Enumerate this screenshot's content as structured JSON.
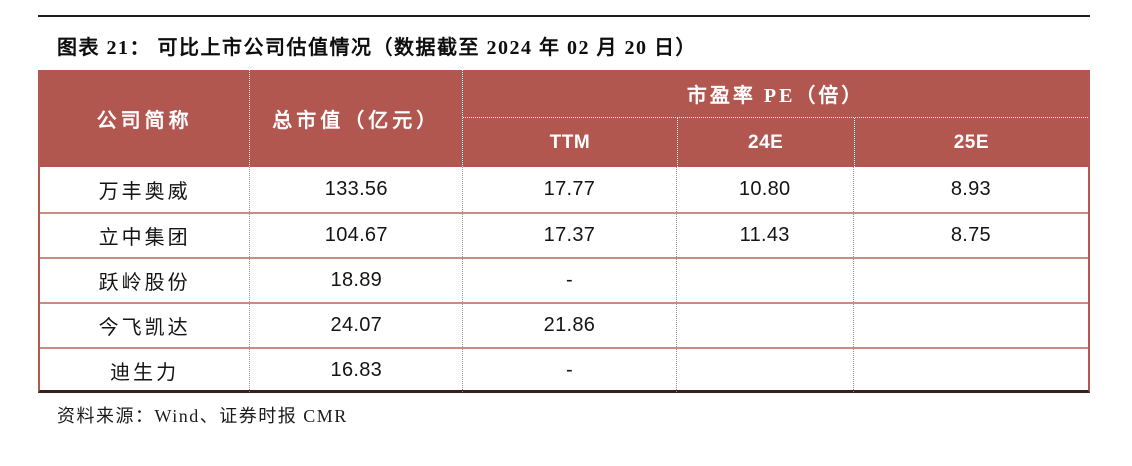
{
  "title": "图表 21： 可比上市公司估值情况（数据截至 2024 年 02 月 20 日）",
  "source": "资料来源：Wind、证券时报 CMR",
  "colors": {
    "header_bg": "#b25650",
    "header_text": "#ffffff",
    "row_divider": "#cb8b83",
    "outer_border": "#b4574e",
    "bottom_border": "#35201d",
    "top_rule": "#1d1d1d",
    "body_text": "#141414"
  },
  "table": {
    "header": {
      "company": "公司简称",
      "market_cap": "总市值（亿元）",
      "pe_group": "市盈率 PE（倍）",
      "sub_columns": [
        "TTM",
        "24E",
        "25E"
      ]
    },
    "rows": [
      {
        "company": "万丰奥威",
        "market_cap": "133.56",
        "ttm": "17.77",
        "e24": "10.80",
        "e25": "8.93"
      },
      {
        "company": "立中集团",
        "market_cap": "104.67",
        "ttm": "17.37",
        "e24": "11.43",
        "e25": "8.75"
      },
      {
        "company": "跃岭股份",
        "market_cap": "18.89",
        "ttm": "-",
        "e24": "",
        "e25": ""
      },
      {
        "company": "今飞凯达",
        "market_cap": "24.07",
        "ttm": "21.86",
        "e24": "",
        "e25": ""
      },
      {
        "company": "迪生力",
        "market_cap": "16.83",
        "ttm": "-",
        "e24": "",
        "e25": ""
      }
    ]
  }
}
